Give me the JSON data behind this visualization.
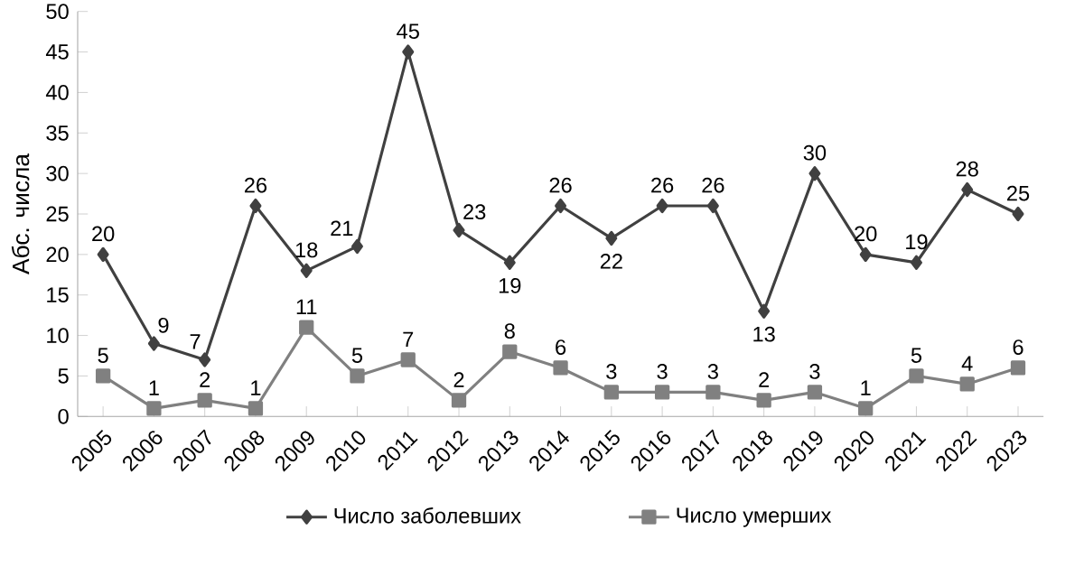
{
  "chart_data": {
    "type": "line",
    "ylabel": "Абс. числа",
    "categories": [
      "2005",
      "2006",
      "2007",
      "2008",
      "2009",
      "2010",
      "2011",
      "2012",
      "2013",
      "2014",
      "2015",
      "2016",
      "2017",
      "2018",
      "2019",
      "2020",
      "2021",
      "2022",
      "2023"
    ],
    "series": [
      {
        "name": "Число заболевших",
        "color": "#404040",
        "marker": "diamond",
        "values": [
          20,
          9,
          7,
          26,
          18,
          21,
          45,
          23,
          19,
          26,
          22,
          26,
          26,
          13,
          30,
          20,
          19,
          28,
          25
        ]
      },
      {
        "name": "Число умерших",
        "color": "#808080",
        "marker": "square",
        "values": [
          5,
          1,
          2,
          1,
          11,
          5,
          7,
          2,
          8,
          6,
          3,
          3,
          3,
          2,
          3,
          1,
          5,
          4,
          6
        ]
      }
    ],
    "ylim": [
      0,
      50
    ],
    "yticks": [
      0,
      5,
      10,
      15,
      20,
      25,
      30,
      35,
      40,
      45,
      50
    ],
    "data_labels": true,
    "legend": "bottom",
    "grid": false,
    "line_style": "solid"
  }
}
